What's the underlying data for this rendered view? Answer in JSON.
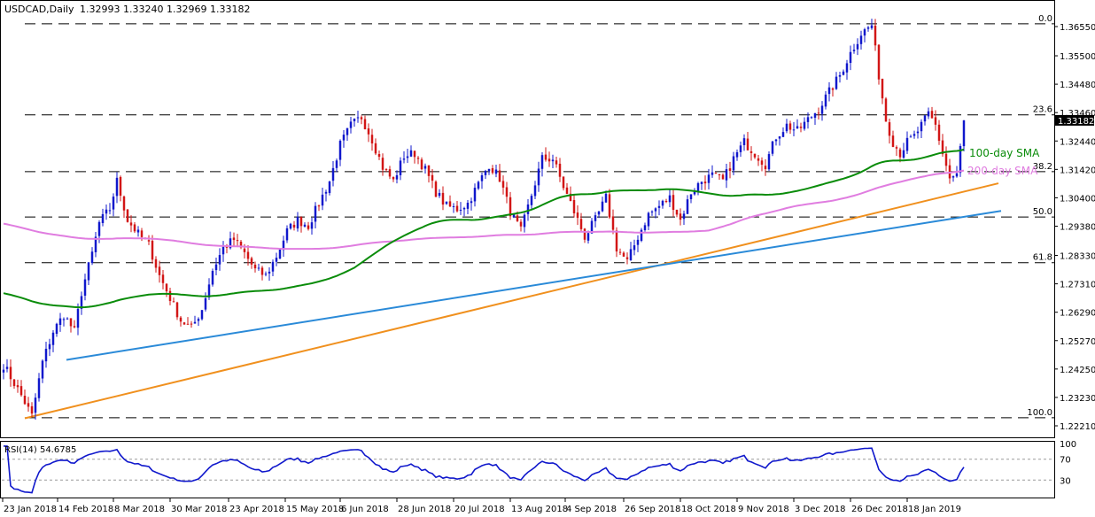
{
  "header": {
    "symbol": "USDCAD,Daily",
    "ohlc": "1.32993 1.33240 1.32969 1.33182"
  },
  "colors": {
    "bull": "#1018cc",
    "bear": "#d21616",
    "sma100": "#0a8c0a",
    "sma200": "#e07de0",
    "trend_orange": "#f0901e",
    "trend_blue": "#2a8ad8",
    "rsi": "#1018cc",
    "price_badge": "#000000"
  },
  "chart_data": [
    {
      "type": "line",
      "ylim": [
        1.2204,
        1.3685
      ],
      "y_ticks": [
        "1.36550",
        "1.35500",
        "1.34480",
        "1.33460",
        "1.32440",
        "1.31420",
        "1.30400",
        "1.29380",
        "1.28330",
        "1.27310",
        "1.26290",
        "1.25270",
        "1.24250",
        "1.23230",
        "1.22210"
      ],
      "y_tick_values": [
        1.3655,
        1.355,
        1.3448,
        1.3346,
        1.3244,
        1.3142,
        1.304,
        1.2938,
        1.2833,
        1.2731,
        1.2629,
        1.2527,
        1.2425,
        1.2323,
        1.2221
      ],
      "x_ticks": [
        "23 Jan 2018",
        "14 Feb 2018",
        "8 Mar 2018",
        "30 Mar 2018",
        "23 Apr 2018",
        "15 May 2018",
        "6 Jun 2018",
        "28 Jun 2018",
        "20 Jul 2018",
        "13 Aug 2018",
        "4 Sep 2018",
        "26 Sep 2018",
        "18 Oct 2018",
        "9 Nov 2018",
        "3 Dec 2018",
        "26 Dec 2018",
        "18 Jan 2019"
      ],
      "current_price": "1.33182",
      "current_value": 1.33182,
      "fib_levels": [
        {
          "label": "0.0",
          "value": 1.3665
        },
        {
          "label": "23.6",
          "value": 1.3338
        },
        {
          "label": "38.2",
          "value": 1.3134
        },
        {
          "label": "50.0",
          "value": 1.2971
        },
        {
          "label": "61.8",
          "value": 1.2807
        },
        {
          "label": "100.0",
          "value": 1.225
        }
      ],
      "annotations": [
        {
          "text": "100-day SMA"
        },
        {
          "text": "200-day SMA"
        }
      ],
      "key_closes": [
        {
          "date": "23 Jan 2018",
          "close": 1.245
        },
        {
          "date": "30 Jan 2018",
          "close": 1.232
        },
        {
          "date": "14 Feb 2018",
          "close": 1.257
        },
        {
          "date": "8 Mar 2018",
          "close": 1.301
        },
        {
          "date": "30 Mar 2018",
          "close": 1.258
        },
        {
          "date": "23 Apr 2018",
          "close": 1.286
        },
        {
          "date": "15 May 2018",
          "close": 1.281
        },
        {
          "date": "6 Jun 2018",
          "close": 1.294
        },
        {
          "date": "28 Jun 2018",
          "close": 1.329
        },
        {
          "date": "20 Jul 2018",
          "close": 1.316
        },
        {
          "date": "13 Aug 2018",
          "close": 1.305
        },
        {
          "date": "4 Sep 2018",
          "close": 1.311
        },
        {
          "date": "26 Sep 2018",
          "close": 1.284
        },
        {
          "date": "18 Oct 2018",
          "close": 1.309
        },
        {
          "date": "9 Nov 2018",
          "close": 1.322
        },
        {
          "date": "3 Dec 2018",
          "close": 1.335
        },
        {
          "date": "26 Dec 2018",
          "close": 1.363
        },
        {
          "date": "18 Jan 2019",
          "close": 1.325
        },
        {
          "date": "31 Jan 2019",
          "close": 1.3109
        },
        {
          "date": "5 Feb 2019",
          "close": 1.3318
        }
      ]
    },
    {
      "type": "line",
      "title": "RSI(14) 54.6785",
      "ylim": [
        0,
        100
      ],
      "y_ticks": [
        "100",
        "70",
        "30",
        "0"
      ],
      "y_tick_values": [
        100,
        70,
        30,
        0
      ],
      "levels": [
        70,
        30
      ],
      "current": 54.6785
    }
  ]
}
